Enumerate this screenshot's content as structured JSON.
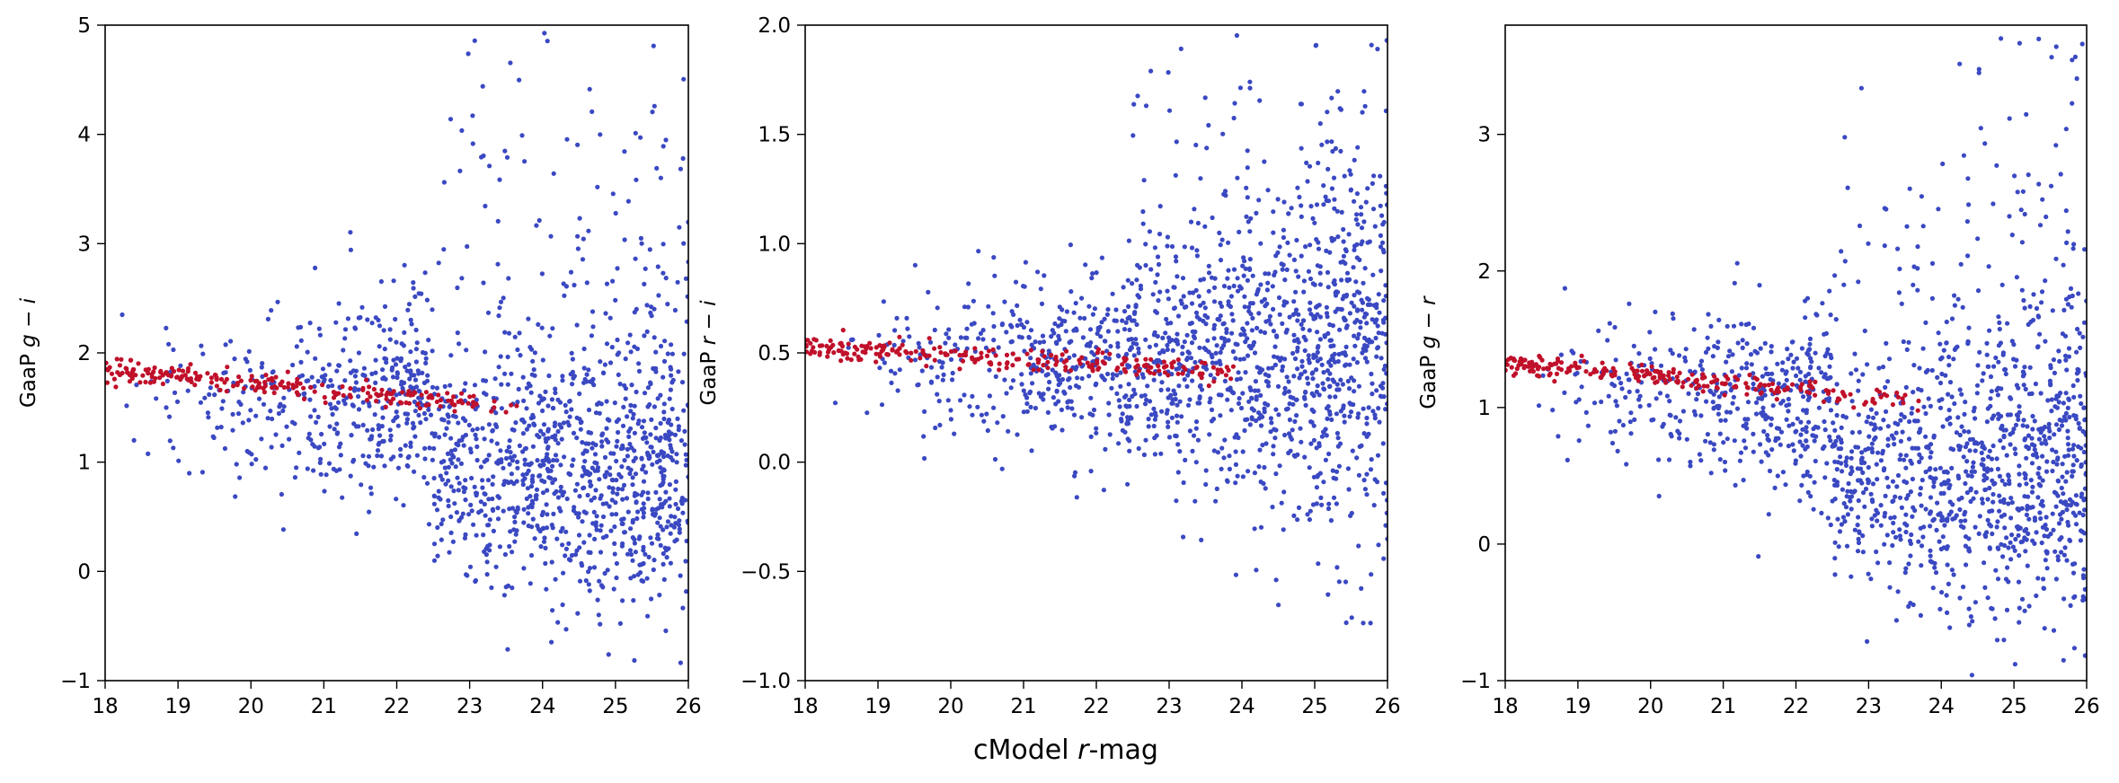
{
  "figure": {
    "xlabel_prefix": "cModel ",
    "xlabel_var": "r",
    "xlabel_suffix": "-mag"
  },
  "colors": {
    "blue": "#3a48c2",
    "red": "#c0102a"
  },
  "chart_data": [
    {
      "type": "scatter",
      "ylabel_prefix": "GaaP ",
      "ylabel_var": "g − i",
      "xlim": [
        18,
        26
      ],
      "ylim": [
        -1,
        5
      ],
      "xticks": [
        "18",
        "19",
        "20",
        "21",
        "22",
        "23",
        "24",
        "25",
        "26"
      ],
      "yticks": [
        "−1",
        "0",
        "1",
        "2",
        "3",
        "4",
        "5"
      ],
      "xtick_values": [
        18,
        19,
        20,
        21,
        22,
        23,
        24,
        25,
        26
      ],
      "ytick_values": [
        -1,
        0,
        1,
        2,
        3,
        4,
        5
      ],
      "red_sequence": {
        "x_start": 18.0,
        "x_end": 23.7,
        "y_start": 1.85,
        "y_end": 1.5,
        "scatter": 0.05
      },
      "blue_population": {
        "bright_mean": 1.6,
        "bright_spread": 0.45,
        "faint_center_x": 24.2,
        "faint_center_y": 0.9,
        "faint_spread": 0.55,
        "outlier_high_max": 5.0
      }
    },
    {
      "type": "scatter",
      "ylabel_prefix": "GaaP ",
      "ylabel_var": "r − i",
      "xlim": [
        18,
        26
      ],
      "ylim": [
        -1.0,
        2.0
      ],
      "xticks": [
        "18",
        "19",
        "20",
        "21",
        "22",
        "23",
        "24",
        "25",
        "26"
      ],
      "yticks": [
        "−1.0",
        "−0.5",
        "0.0",
        "0.5",
        "1.0",
        "1.5",
        "2.0"
      ],
      "xtick_values": [
        18,
        19,
        20,
        21,
        22,
        23,
        24,
        25,
        26
      ],
      "ytick_values": [
        -1.0,
        -0.5,
        0.0,
        0.5,
        1.0,
        1.5,
        2.0
      ],
      "red_sequence": {
        "x_start": 18.0,
        "x_end": 23.9,
        "y_start": 0.53,
        "y_end": 0.41,
        "scatter": 0.025
      },
      "blue_population": {
        "bright_mean": 0.45,
        "bright_spread": 0.2,
        "faint_center_x": 24.0,
        "faint_center_y": 0.45,
        "faint_spread": 0.35,
        "outlier_high_max": 2.0
      }
    },
    {
      "type": "scatter",
      "ylabel_prefix": "GaaP ",
      "ylabel_var": "g − r",
      "xlim": [
        18,
        26
      ],
      "ylim": [
        -1,
        3.8
      ],
      "xticks": [
        "18",
        "19",
        "20",
        "21",
        "22",
        "23",
        "24",
        "25",
        "26"
      ],
      "yticks": [
        "−1",
        "0",
        "1",
        "2",
        "3"
      ],
      "xtick_values": [
        18,
        19,
        20,
        21,
        22,
        23,
        24,
        25,
        26
      ],
      "ytick_values": [
        -1,
        0,
        1,
        2,
        3
      ],
      "red_sequence": {
        "x_start": 18.0,
        "x_end": 23.7,
        "y_start": 1.33,
        "y_end": 1.05,
        "scatter": 0.04
      },
      "blue_population": {
        "bright_mean": 1.1,
        "bright_spread": 0.35,
        "faint_center_x": 24.1,
        "faint_center_y": 0.5,
        "faint_spread": 0.5,
        "outlier_high_max": 3.8
      }
    }
  ]
}
